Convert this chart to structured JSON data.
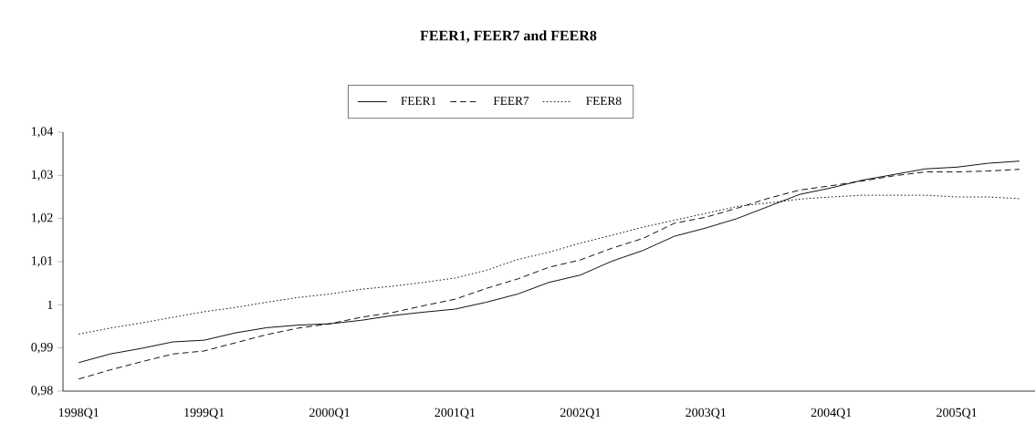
{
  "chart_data": {
    "type": "line",
    "title": "FEER1, FEER7 and FEER8",
    "categories": [
      "1998Q1",
      null,
      null,
      null,
      "1999Q1",
      null,
      null,
      null,
      "2000Q1",
      null,
      null,
      null,
      "2001Q1",
      null,
      null,
      null,
      "2002Q1",
      null,
      null,
      null,
      "2003Q1",
      null,
      null,
      null,
      "2004Q1",
      null,
      null,
      null,
      "2005Q1",
      null,
      null
    ],
    "series": [
      {
        "name": "FEER1",
        "color": "#000000",
        "line_style": "solid",
        "values": [
          0.9866,
          0.9886,
          0.9899,
          0.9914,
          0.9918,
          0.9935,
          0.9947,
          0.9953,
          0.9956,
          0.9964,
          0.9975,
          0.9983,
          0.999,
          1.0006,
          1.0025,
          1.0052,
          1.0069,
          1.0101,
          1.0126,
          1.0159,
          1.0178,
          1.02,
          1.0228,
          1.0256,
          1.0271,
          1.0289,
          1.0302,
          1.0315,
          1.0319,
          1.0328,
          1.0333
        ]
      },
      {
        "name": "FEER7",
        "color": "#000000",
        "line_style": "dashed",
        "values": [
          0.9828,
          0.9849,
          0.9868,
          0.9886,
          0.9893,
          0.9912,
          0.9931,
          0.9946,
          0.9956,
          0.9971,
          0.9982,
          0.9998,
          1.0013,
          1.0038,
          1.006,
          1.0087,
          1.0104,
          1.0131,
          1.0154,
          1.0189,
          1.0203,
          1.0224,
          1.0247,
          1.0266,
          1.0276,
          1.0287,
          1.0299,
          1.0308,
          1.0308,
          1.031,
          1.0314
        ]
      },
      {
        "name": "FEER8",
        "color": "#000000",
        "line_style": "dotted",
        "values": [
          0.9932,
          0.9946,
          0.9958,
          0.9971,
          0.9984,
          0.9994,
          1.0006,
          1.0017,
          1.0025,
          1.0036,
          1.0043,
          1.0052,
          1.0062,
          1.008,
          1.0105,
          1.0122,
          1.0143,
          1.0161,
          1.018,
          1.0196,
          1.0212,
          1.0228,
          1.0236,
          1.0245,
          1.025,
          1.0254,
          1.0254,
          1.0254,
          1.025,
          1.025,
          1.0246
        ]
      }
    ],
    "ylim": [
      0.98,
      1.04
    ],
    "yticks": [
      {
        "value": 0.98,
        "label": "0,98"
      },
      {
        "value": 0.99,
        "label": "0,99"
      },
      1,
      {
        "value": 1.01,
        "label": "1,01"
      },
      {
        "value": 1.02,
        "label": "1,02"
      },
      {
        "value": 1.03,
        "label": "1,03"
      },
      {
        "value": 1.04,
        "label": "1,04"
      }
    ],
    "legend": "top",
    "grid": false,
    "marker": "none"
  }
}
